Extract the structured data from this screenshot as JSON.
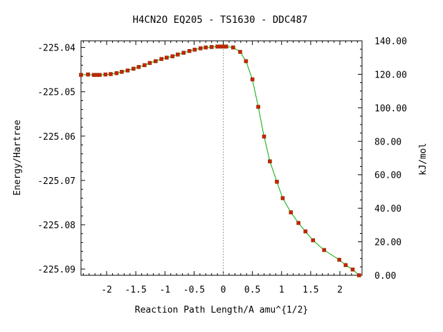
{
  "chart_data": {
    "type": "line",
    "title": "H4CN2O   EQ205 - TS1630 - DDC487",
    "xlabel": "Reaction Path Length/A amu^{1/2}",
    "ylabel": "Energy/Hartree",
    "y2label": "kJ/mol",
    "xlim": [
      -2.44,
      2.38
    ],
    "ylim": [
      -225.0914,
      -225.0385
    ],
    "y2lim": [
      0,
      140
    ],
    "x_ticks": [
      -2,
      -1.5,
      -1,
      -0.5,
      0,
      0.5,
      1,
      1.5,
      2
    ],
    "x_tick_labels": [
      "-2",
      "-1.5",
      "-1",
      "-0.5",
      "0",
      "0.5",
      "1",
      "1.5",
      "2"
    ],
    "y_ticks": [
      -225.04,
      -225.05,
      -225.06,
      -225.07,
      -225.08,
      -225.09
    ],
    "y_tick_labels": [
      "-225.04",
      "-225.05",
      "-225.06",
      "-225.07",
      "-225.08",
      "-225.09"
    ],
    "y2_ticks": [
      0,
      20,
      40,
      60,
      80,
      100,
      120,
      140
    ],
    "y2_tick_labels": [
      "0.00",
      "20.00",
      "40.00",
      "60.00",
      "80.00",
      "100.00",
      "120.00",
      "140.00"
    ],
    "ts_x": 0,
    "line_color": "#00aa00",
    "marker_color": "#cc2200",
    "series": [
      {
        "x": [
          -2.44,
          -2.32,
          -2.22,
          -2.17,
          -2.12,
          -2.02,
          -1.93,
          -1.83,
          -1.74,
          -1.64,
          -1.54,
          -1.45,
          -1.35,
          -1.26,
          -1.16,
          -1.06,
          -0.97,
          -0.87,
          -0.78,
          -0.68,
          -0.58,
          -0.49,
          -0.39,
          -0.3,
          -0.2,
          -0.1,
          -0.05,
          0.0,
          0.05,
          0.17,
          0.29,
          0.39,
          0.5,
          0.6,
          0.7,
          0.8,
          0.92,
          1.02,
          1.16,
          1.29,
          1.41,
          1.54,
          1.73,
          1.99,
          2.1,
          2.22,
          2.33
        ],
        "y": [
          -225.0462,
          -225.0461,
          -225.0462,
          -225.0462,
          -225.0462,
          -225.0461,
          -225.046,
          -225.0458,
          -225.0455,
          -225.0452,
          -225.0448,
          -225.0444,
          -225.044,
          -225.0435,
          -225.0431,
          -225.0426,
          -225.0423,
          -225.042,
          -225.0416,
          -225.0412,
          -225.0408,
          -225.0405,
          -225.0402,
          -225.04,
          -225.0399,
          -225.0398,
          -225.0398,
          -225.0398,
          -225.0398,
          -225.04,
          -225.041,
          -225.0431,
          -225.0472,
          -225.0534,
          -225.0601,
          -225.0657,
          -225.0703,
          -225.074,
          -225.0772,
          -225.0796,
          -225.0815,
          -225.0835,
          -225.0857,
          -225.0879,
          -225.0891,
          -225.0901,
          -225.0914
        ]
      }
    ]
  }
}
